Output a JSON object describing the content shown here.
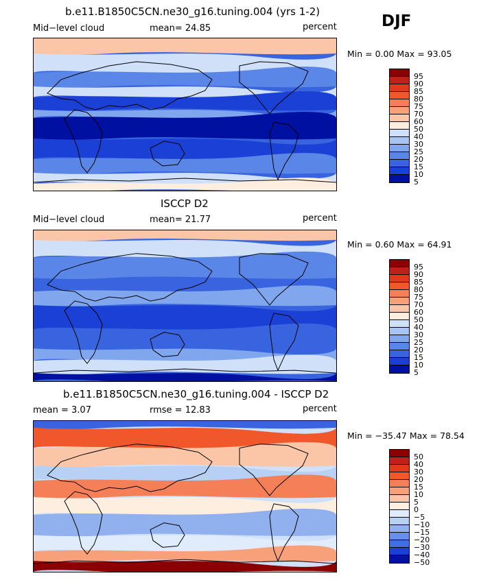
{
  "season": "DJF",
  "panels": [
    {
      "title": "b.e11.B1850C5CN.ne30_g16.tuning.004 (yrs 1-2)",
      "left_label": "Mid−level cloud",
      "mean_text": "mean=   24.85",
      "units": "percent",
      "minmax": "Min =    0.00 Max =   93.05",
      "levels": [
        "95",
        "90",
        "85",
        "80",
        "75",
        "70",
        "60",
        "50",
        "40",
        "30",
        "25",
        "20",
        "15",
        "10",
        "5"
      ],
      "palette": [
        "#8b0000",
        "#c0201a",
        "#e03a1a",
        "#f0582c",
        "#f58058",
        "#f8a07a",
        "#fbc6a8",
        "#fdeee0",
        "#cfe0f8",
        "#a8c4f2",
        "#80a6ee",
        "#5a86e8",
        "#3864e0",
        "#1a40d6",
        "#0010a0"
      ],
      "field": "cloud"
    },
    {
      "title": "ISCCP D2",
      "left_label": "Mid−level cloud",
      "mean_text": "mean=   21.77",
      "units": "percent",
      "minmax": "Min =    0.60 Max =   64.91",
      "levels": [
        "95",
        "90",
        "85",
        "80",
        "75",
        "70",
        "60",
        "50",
        "40",
        "30",
        "25",
        "20",
        "15",
        "10",
        "5"
      ],
      "palette": [
        "#8b0000",
        "#c0201a",
        "#e03a1a",
        "#f0582c",
        "#f58058",
        "#f8a07a",
        "#fbc6a8",
        "#fdeee0",
        "#cfe0f8",
        "#a8c4f2",
        "#80a6ee",
        "#5a86e8",
        "#3864e0",
        "#1a40d6",
        "#0010a0"
      ],
      "field": "obs"
    },
    {
      "title": "b.e11.B1850C5CN.ne30_g16.tuning.004 - ISCCP D2",
      "left_label": "mean =    3.07",
      "mean_text": "rmse =   12.83",
      "units": "percent",
      "minmax": "Min = −35.47 Max =   78.54",
      "levels": [
        "50",
        "40",
        "30",
        "20",
        "15",
        "10",
        "5",
        "0",
        "−5",
        "−10",
        "−15",
        "−20",
        "−30",
        "−40",
        "−50"
      ],
      "palette": [
        "#8b0000",
        "#c0201a",
        "#e03a1a",
        "#f0582c",
        "#f58058",
        "#f8a07a",
        "#fbc6a8",
        "#fdeee0",
        "#e0ecfb",
        "#b8d0f4",
        "#90b0ee",
        "#6890e8",
        "#4070e0",
        "#1a40d6",
        "#0010a0"
      ],
      "field": "diff"
    }
  ]
}
